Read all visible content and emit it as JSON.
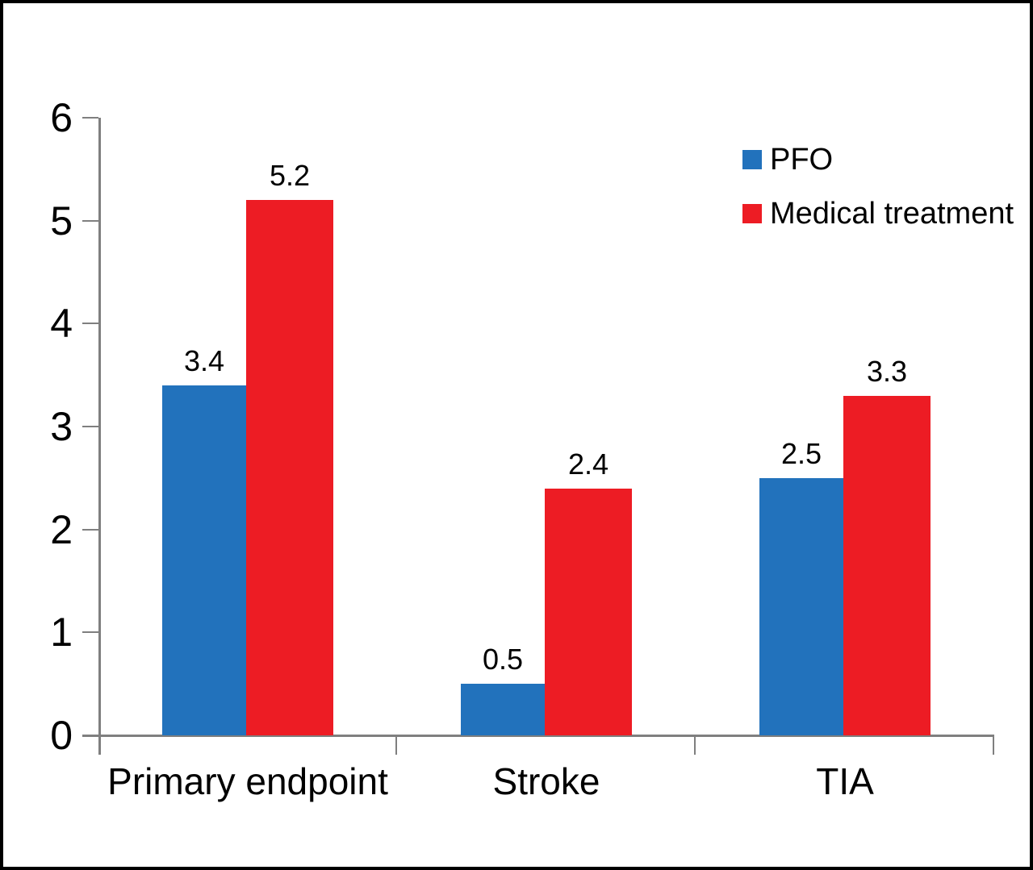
{
  "figure": {
    "background": "#ffffff",
    "border_color": "#000000",
    "axis_color": "#7f7f7f",
    "text_color": "#000000"
  },
  "chart_data": {
    "type": "bar",
    "title": "",
    "xlabel": "",
    "ylabel": "",
    "categories": [
      "Primary endpoint",
      "Stroke",
      "TIA"
    ],
    "series": [
      {
        "name": "PFO",
        "color": "#2272bc",
        "values": [
          3.4,
          0.5,
          2.5
        ]
      },
      {
        "name": "Medical treatment",
        "color": "#ed1c24",
        "values": [
          5.2,
          2.4,
          3.3
        ]
      }
    ],
    "data_labels": {
      "PFO": [
        "3.4",
        "0.5",
        "2.5"
      ],
      "Medical treatment": [
        "5.2",
        "2.4",
        "3.3"
      ]
    },
    "ylim": [
      0,
      6
    ],
    "yticks": [
      "0",
      "1",
      "2",
      "3",
      "4",
      "5",
      "6"
    ],
    "grid": false,
    "legend_position": "top-right"
  }
}
